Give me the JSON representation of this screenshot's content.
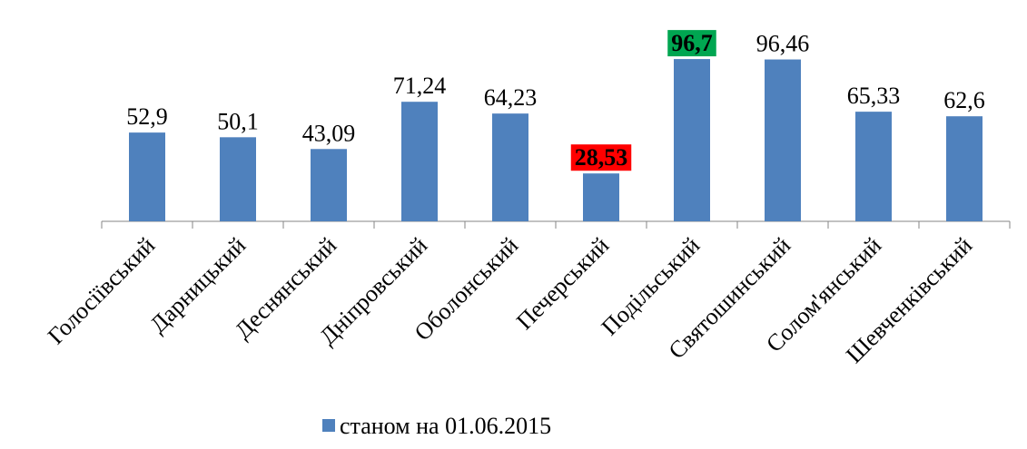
{
  "chart_data": {
    "type": "bar",
    "categories": [
      "Голосіївський",
      "Дарницький",
      "Деснянський",
      "Дніпровський",
      "Оболонський",
      "Печерський",
      "Подільський",
      "Святошинський",
      "Солом'янський",
      "Шевченківський"
    ],
    "series": [
      {
        "name": "станом на 01.06.2015",
        "color": "#4f81bd",
        "values": [
          52.9,
          50.1,
          43.09,
          71.24,
          64.23,
          28.53,
          96.7,
          96.46,
          65.33,
          62.6
        ],
        "value_labels": [
          "52,9",
          "50,1",
          "43,09",
          "71,24",
          "64,23",
          "28,53",
          "96,7",
          "96,46",
          "65,33",
          "62,6"
        ],
        "label_backgrounds": [
          null,
          null,
          null,
          null,
          null,
          "#ff0000",
          "#00a651",
          null,
          null,
          null
        ]
      }
    ],
    "ylim": [
      0,
      100
    ],
    "legend": "bottom"
  }
}
